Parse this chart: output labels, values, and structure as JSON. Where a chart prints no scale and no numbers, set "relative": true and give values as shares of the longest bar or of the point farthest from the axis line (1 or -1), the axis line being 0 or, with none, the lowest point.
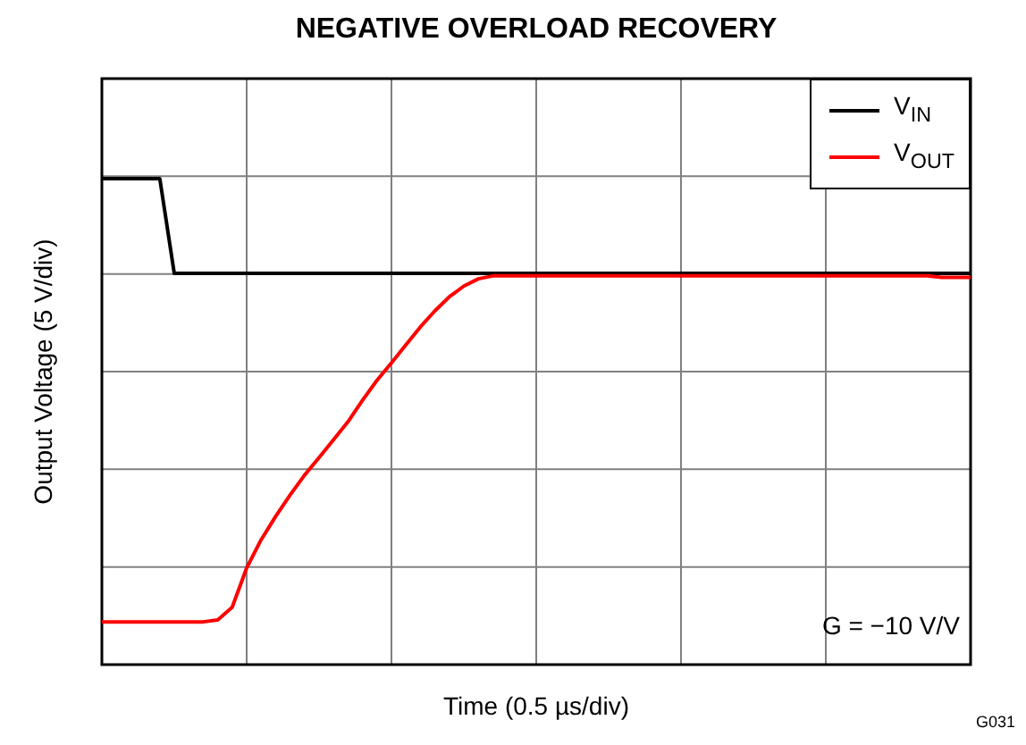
{
  "chart_data": {
    "type": "line",
    "title": "NEGATIVE OVERLOAD RECOVERY",
    "xlabel": "Time (0.5 µs/div)",
    "ylabel": "Output Voltage (5 V/div)",
    "relative": true,
    "grid": true,
    "legend": "top right",
    "marker": "none",
    "line_style": "solid",
    "categories": [
      null,
      null,
      null,
      null,
      null,
      null,
      null,
      null,
      null,
      null,
      null,
      null,
      null,
      null,
      null,
      null,
      null,
      null,
      null,
      null,
      null,
      null,
      null,
      null,
      null,
      null,
      null,
      null,
      null,
      null,
      null,
      null,
      null,
      null,
      null,
      null,
      null,
      null,
      null,
      null,
      null,
      null,
      null,
      null,
      null,
      null,
      null,
      null,
      null,
      null,
      null,
      null,
      null,
      null,
      null,
      null,
      null,
      null,
      null,
      null,
      null
    ],
    "series": [
      {
        "name": "V$_{IN}$",
        "color": "#000000",
        "values": [
          1,
          1,
          1,
          1,
          1,
          0.805,
          0.805,
          0.805,
          0.805,
          0.805,
          0.805,
          0.805,
          0.805,
          0.805,
          0.805,
          0.805,
          0.805,
          0.805,
          0.805,
          0.805,
          0.805,
          0.805,
          0.805,
          0.805,
          0.805,
          0.805,
          0.805,
          0.805,
          0.805,
          0.805,
          0.805,
          0.805,
          0.805,
          0.805,
          0.805,
          0.805,
          0.805,
          0.805,
          0.805,
          0.805,
          0.805,
          0.805,
          0.805,
          0.805,
          0.805,
          0.805,
          0.805,
          0.805,
          0.805,
          0.805,
          0.805,
          0.805,
          0.805,
          0.805,
          0.805,
          0.805,
          0.805,
          0.805,
          0.805,
          0.805,
          0.805
        ]
      },
      {
        "name": "V$_{OUT}$",
        "color": "#ff0000",
        "values": [
          0.088,
          0.088,
          0.088,
          0.088,
          0.088,
          0.088,
          0.088,
          0.088,
          0.092,
          0.118,
          0.199,
          0.257,
          0.305,
          0.349,
          0.39,
          0.426,
          0.463,
          0.5,
          0.544,
          0.585,
          0.621,
          0.658,
          0.695,
          0.728,
          0.757,
          0.779,
          0.794,
          0.8,
          0.8,
          0.8,
          0.8,
          0.8,
          0.8,
          0.8,
          0.8,
          0.8,
          0.8,
          0.8,
          0.8,
          0.8,
          0.8,
          0.8,
          0.8,
          0.8,
          0.8,
          0.8,
          0.8,
          0.8,
          0.8,
          0.8,
          0.8,
          0.8,
          0.8,
          0.8,
          0.8,
          0.8,
          0.8,
          0.8,
          0.797,
          0.797,
          0.797
        ]
      }
    ],
    "annotations": [
      "G = −10 V/V",
      "G031"
    ]
  }
}
